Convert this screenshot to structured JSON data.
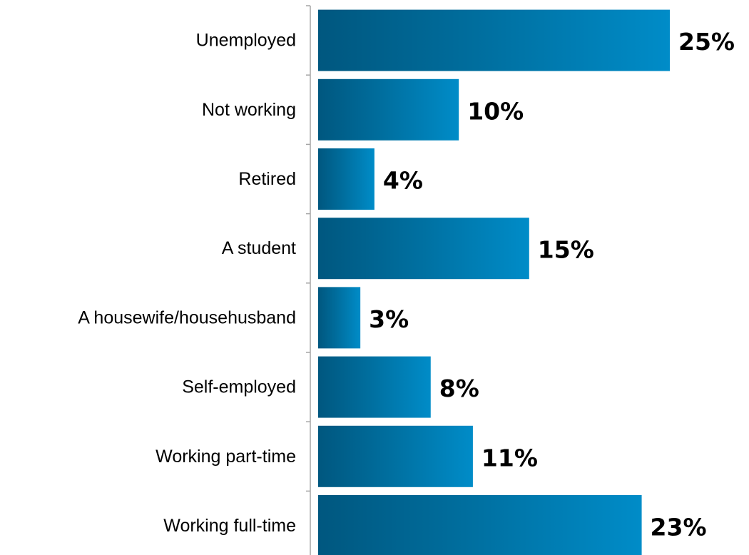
{
  "chart_data": {
    "type": "bar",
    "orientation": "horizontal",
    "categories": [
      "Unemployed",
      "Not working",
      "Retired",
      "A student",
      "A housewife/househusband",
      "Self-employed",
      "Working part-time",
      "Working full-time"
    ],
    "values": [
      25,
      10,
      4,
      15,
      3,
      8,
      11,
      23
    ],
    "value_labels": [
      "25%",
      "10%",
      "4%",
      "15%",
      "3%",
      "8%",
      "11%",
      "23%"
    ],
    "unit": "%",
    "title": "",
    "xlabel": "",
    "ylabel": "",
    "xlim": [
      0,
      25
    ],
    "grid": false,
    "legend": "none",
    "colors": {
      "bar_dark": "#00577f",
      "bar_mid": "#006e9e",
      "bar_light": "#008cc8",
      "axis": "#a6a6a6",
      "text": "#000000"
    }
  }
}
